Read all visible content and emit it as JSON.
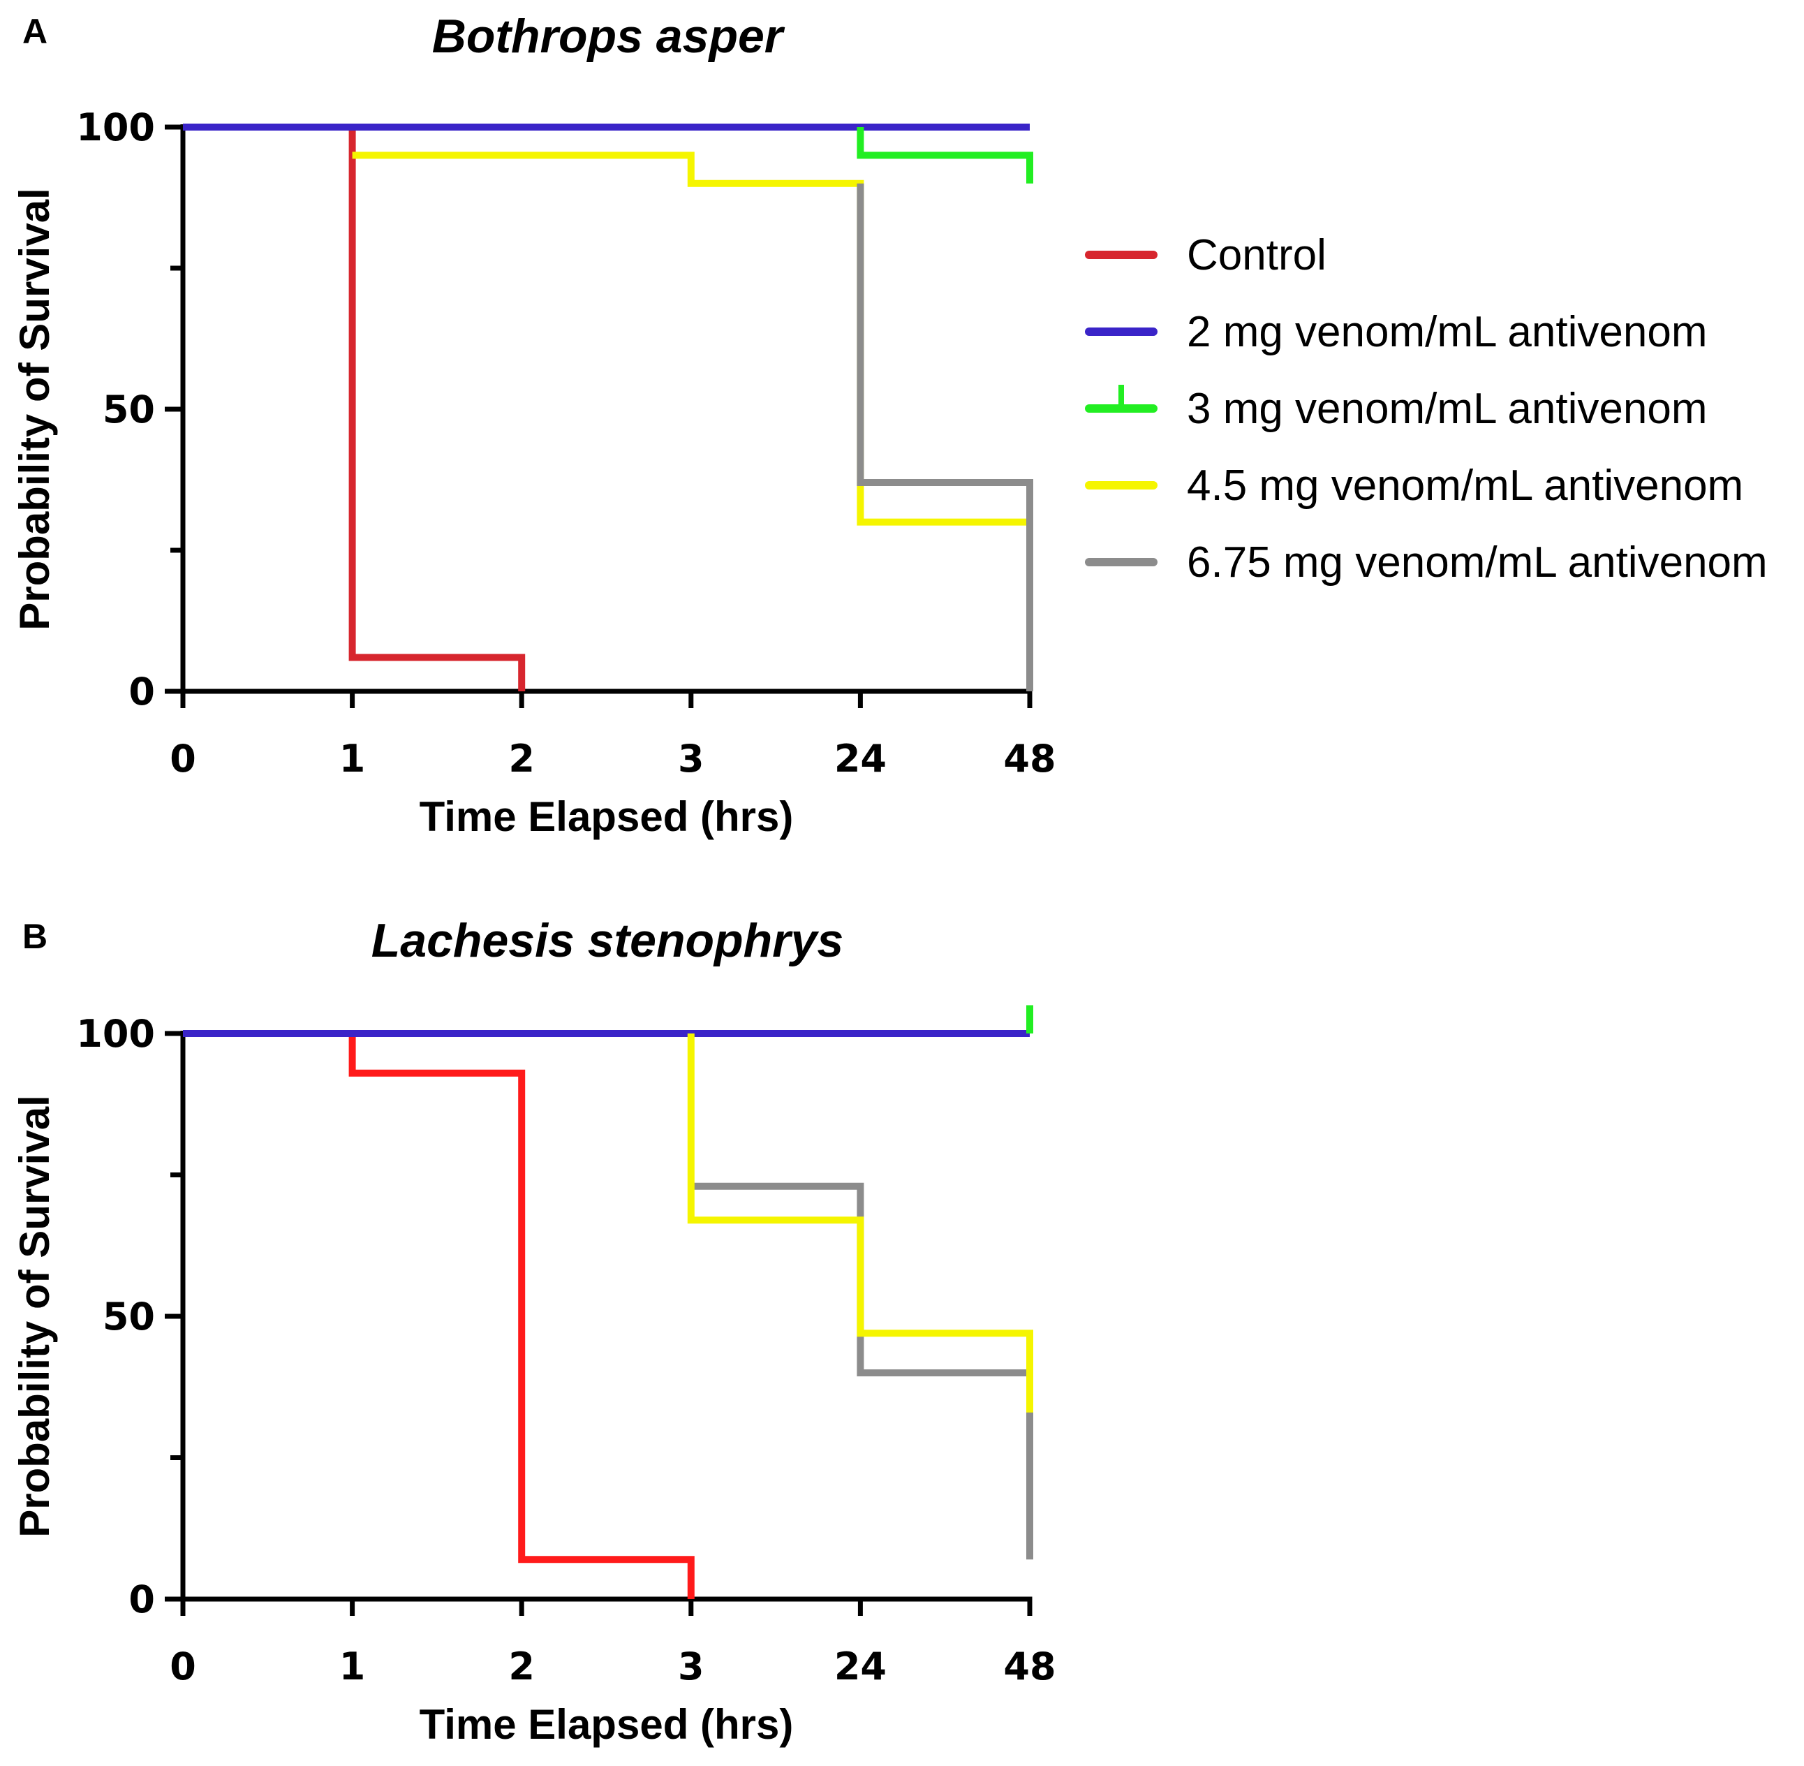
{
  "chart_data": [
    {
      "panel": "A",
      "type": "line",
      "subtype": "kaplan-meier-step",
      "title": "Bothrops asper",
      "xlabel": "Time Elapsed (hrs)",
      "ylabel": "Probability of Survival",
      "categories": [
        "0",
        "1",
        "2",
        "3",
        "24",
        "48"
      ],
      "y_ticks": [
        0,
        50,
        100
      ],
      "ylim": [
        0,
        100
      ],
      "series": [
        {
          "name": "Control",
          "color": "#d7262e",
          "points": [
            [
              0,
              100
            ],
            [
              1,
              100
            ],
            [
              1,
              6
            ],
            [
              2,
              6
            ],
            [
              2,
              0
            ]
          ]
        },
        {
          "name": "2 mg venom/mL antivenom",
          "color": "#3a24c8",
          "points": [
            [
              0,
              100
            ],
            [
              5,
              100
            ]
          ]
        },
        {
          "name": "3 mg venom/mL antivenom",
          "color": "#22ee22",
          "points": [
            [
              4,
              100
            ],
            [
              4,
              95
            ],
            [
              5,
              95
            ],
            [
              5,
              90
            ]
          ]
        },
        {
          "name": "4.5 mg venom/mL antivenom",
          "color": "#f5f500",
          "points": [
            [
              1,
              95
            ],
            [
              3,
              95
            ],
            [
              3,
              90
            ],
            [
              4,
              90
            ],
            [
              4,
              30
            ],
            [
              5,
              30
            ]
          ]
        },
        {
          "name": "6.75 mg venom/mL antivenom",
          "color": "#8c8c8c",
          "points": [
            [
              4,
              90
            ],
            [
              4,
              37
            ],
            [
              5,
              37
            ],
            [
              5,
              0
            ]
          ]
        }
      ]
    },
    {
      "panel": "B",
      "type": "line",
      "subtype": "kaplan-meier-step",
      "title": "Lachesis stenophrys",
      "xlabel": "Time Elapsed (hrs)",
      "ylabel": "Probability of Survival",
      "categories": [
        "0",
        "1",
        "2",
        "3",
        "24",
        "48"
      ],
      "y_ticks": [
        0,
        50,
        100
      ],
      "ylim": [
        0,
        100
      ],
      "series": [
        {
          "name": "Control",
          "color": "#ff1a1a",
          "points": [
            [
              0,
              100
            ],
            [
              1,
              100
            ],
            [
              1,
              93
            ],
            [
              2,
              93
            ],
            [
              2,
              7
            ],
            [
              3,
              7
            ],
            [
              3,
              0
            ]
          ]
        },
        {
          "name": "2 mg venom/mL antivenom",
          "color": "#3a24c8",
          "points": [
            [
              0,
              100
            ],
            [
              5,
              100
            ]
          ]
        },
        {
          "name": "3 mg venom/mL antivenom",
          "color": "#22ee22",
          "points": [
            [
              5,
              100
            ],
            [
              5,
              105
            ]
          ]
        },
        {
          "name": "6.75 mg venom/mL antivenom",
          "color": "#8c8c8c",
          "points": [
            [
              3,
              73
            ],
            [
              4,
              73
            ],
            [
              4,
              40
            ],
            [
              5,
              40
            ],
            [
              5,
              7
            ]
          ]
        },
        {
          "name": "4.5 mg venom/mL antivenom",
          "color": "#f5f500",
          "points": [
            [
              3,
              100
            ],
            [
              3,
              67
            ],
            [
              4,
              67
            ],
            [
              4,
              47
            ],
            [
              5,
              47
            ],
            [
              5,
              33
            ]
          ]
        }
      ]
    }
  ],
  "legend": [
    {
      "label": "Control",
      "color": "#d7262e",
      "tick": "none"
    },
    {
      "label": "2 mg venom/mL antivenom",
      "color": "#3a24c8",
      "tick": "none"
    },
    {
      "label": "3 mg venom/mL antivenom",
      "color": "#22ee22",
      "tick": "up"
    },
    {
      "label": "4.5 mg venom/mL antivenom",
      "color": "#f5f500",
      "tick": "none"
    },
    {
      "label": "6.75 mg venom/mL antivenom",
      "color": "#8c8c8c",
      "tick": "none"
    }
  ]
}
